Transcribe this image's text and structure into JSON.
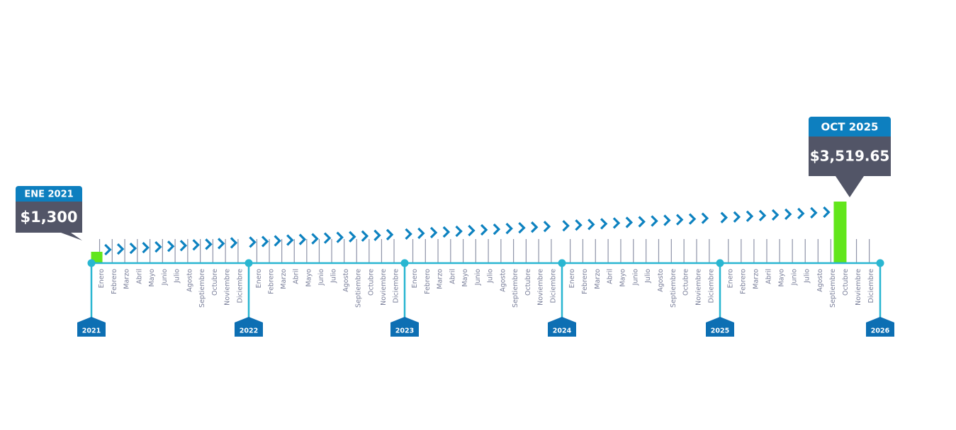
{
  "colors": {
    "axis": "#29b6d1",
    "tick": "#8e93a8",
    "chevron": "#0d82c0",
    "bar": "#62e61b",
    "callout_header": "#0d7fbf",
    "callout_body": "#525567",
    "year_badge": "#0d6fb3",
    "month_text": "#7a7f9a"
  },
  "chart_data": {
    "type": "bar",
    "months": [
      "Enero",
      "Febrero",
      "Marzo",
      "Abril",
      "Mayo",
      "Junio",
      "Julio",
      "Agosto",
      "Septiembre",
      "Octubre",
      "Noviembre",
      "Diciembre"
    ],
    "years": [
      "2021",
      "2022",
      "2023",
      "2024",
      "2025",
      "2026"
    ],
    "start": "2021-01",
    "end": "2025-12",
    "points": [
      {
        "x": "2021-01",
        "y": 1300,
        "date_label": "ENE 2021",
        "value_label": "$1,300"
      },
      {
        "x": "2025-10",
        "y": 3519.65,
        "date_label": "OCT 2025",
        "value_label": "$3,519.65"
      }
    ],
    "trend": "chevrons"
  }
}
